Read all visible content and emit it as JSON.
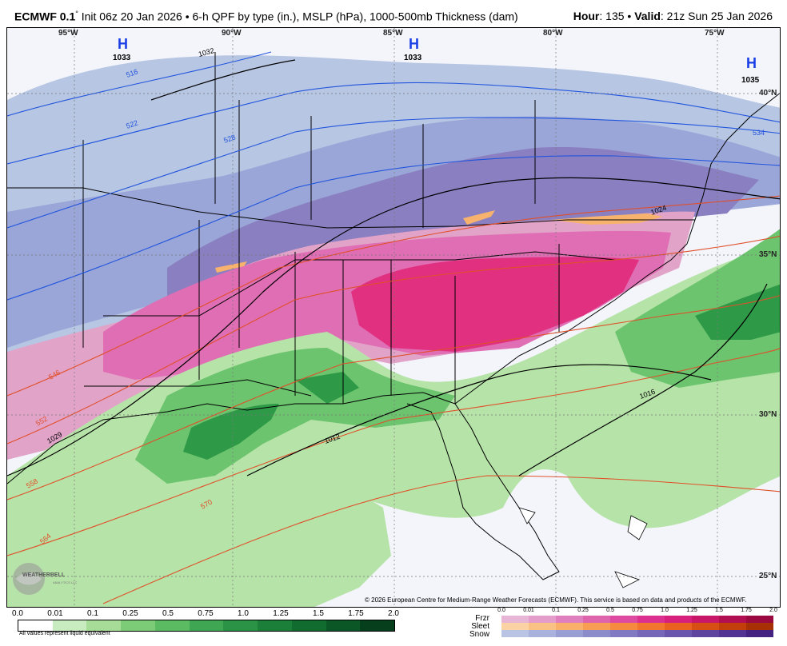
{
  "header": {
    "model": "ECMWF 0.1",
    "degree": "°",
    "description": " Init 06z 20 Jan 2026 • 6-h QPF by type (in.), MSLP (hPa), 1000-500mb Thickness (dam)",
    "hour_label": "Hour",
    "hour_value": ": 135 • ",
    "valid_label": "Valid",
    "valid_value": ": 21z Sun 25 Jan 2026"
  },
  "map": {
    "lon_labels": [
      "95°W",
      "90°W",
      "85°W",
      "80°W",
      "75°W"
    ],
    "lat_labels": [
      "40°N",
      "35°N",
      "30°N",
      "25°N"
    ],
    "highs": [
      {
        "letter": "H",
        "value": "1033"
      },
      {
        "letter": "H",
        "value": "1033"
      },
      {
        "letter": "H",
        "value": "1035"
      }
    ],
    "isobar_labels": [
      "1032",
      "1029",
      "1024",
      "1016",
      "1012"
    ],
    "thickness_cold_labels": [
      "516",
      "522",
      "528",
      "534"
    ],
    "thickness_warm_labels": [
      "546",
      "552",
      "558",
      "564",
      "570"
    ],
    "colors": {
      "snow_light": "#b7c6e3",
      "snow_mid": "#9aa6d8",
      "snow_heavy": "#8a7fc0",
      "frzr_light": "#e2a3c9",
      "frzr_mid": "#e06eb4",
      "frzr_heavy": "#e0307f",
      "sleet": "#f7b36d",
      "rain_light": "#b6e3a8",
      "rain_mid": "#6cc46e",
      "rain_heavy": "#2e9a48",
      "isobar": "#000000",
      "thickness_cold": "#2255dd",
      "thickness_warm": "#e0502a",
      "high_marker": "#1a3ee6"
    }
  },
  "credit": "© 2026 European Centre for Medium-Range Weather Forecasts (ECMWF). This service is based on data and products of the ECMWF.",
  "logo": {
    "text": "WEATHERBELL",
    "sub": "ANALYTICS LLC"
  },
  "legend_rain": {
    "ticks": [
      "0.0",
      "0.01",
      "0.1",
      "0.25",
      "0.5",
      "0.75",
      "1.0",
      "1.25",
      "1.5",
      "1.75",
      "2.0"
    ],
    "colors": [
      "#ffffff",
      "#c8ebbf",
      "#a6dc97",
      "#7ccb76",
      "#5bbb62",
      "#3fa653",
      "#2a9346",
      "#1b7f3a",
      "#116c30",
      "#0b5826",
      "#063f1b"
    ],
    "note": "All values represent liquid equivalent"
  },
  "legend_ptype": {
    "labels": [
      "Frzr",
      "Sleet",
      "Snow"
    ],
    "ticks": [
      "0.0",
      "0.01",
      "0.1",
      "0.25",
      "0.5",
      "0.75",
      "1.0",
      "1.25",
      "1.5",
      "1.75",
      "2.0"
    ],
    "frzr_colors": [
      "#e7b6d6",
      "#e49ccb",
      "#e07fbd",
      "#df64ae",
      "#de4aa0",
      "#dc3090",
      "#d71f7e",
      "#c81668",
      "#b20f53",
      "#9a0a40"
    ],
    "sleet_colors": [
      "#fbd2a3",
      "#f9c184",
      "#f8b06a",
      "#f79e53",
      "#f68b40",
      "#f2762e",
      "#e9621f",
      "#d84f13",
      "#c23e0b",
      "#a73005"
    ],
    "snow_colors": [
      "#b9c4e4",
      "#a8b2dc",
      "#9a9fd3",
      "#8d8ccb",
      "#8179c2",
      "#7667b8",
      "#6a55ac",
      "#5e439f",
      "#523292",
      "#442282"
    ]
  }
}
